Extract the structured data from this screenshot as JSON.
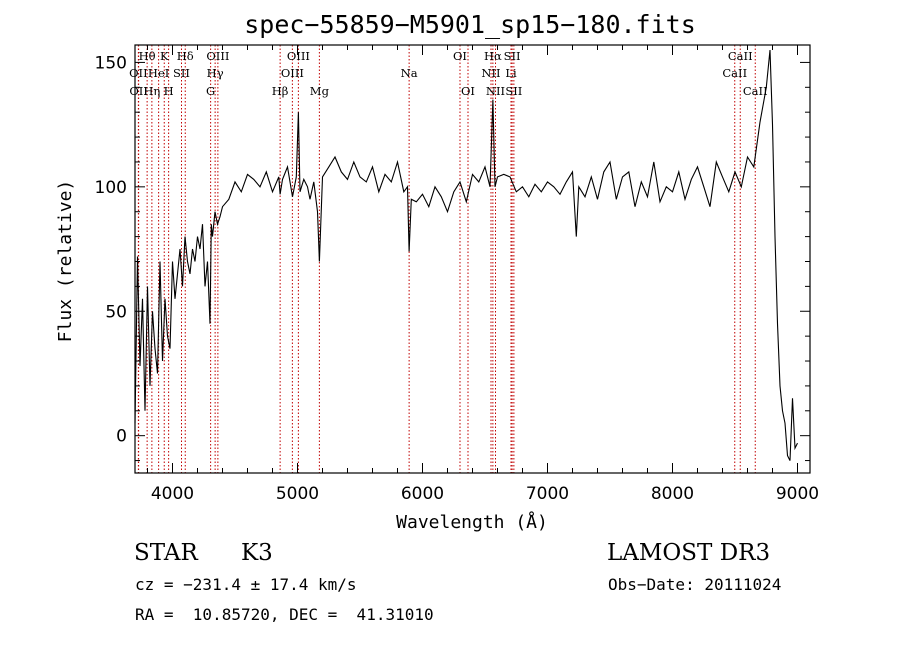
{
  "chart_data": {
    "type": "line",
    "title": "spec−55859−M5901_sp15−180.fits",
    "xlabel": "Wavelength (Å)",
    "ylabel": "Flux (relative)",
    "xlim": [
      3700,
      9100
    ],
    "ylim": [
      -15,
      157
    ],
    "xticks": [
      4000,
      5000,
      6000,
      7000,
      8000,
      9000
    ],
    "yticks": [
      0,
      50,
      100,
      150
    ],
    "grid": false,
    "series": [
      {
        "color": "#000000",
        "x": [
          3700,
          3720,
          3740,
          3760,
          3780,
          3800,
          3820,
          3840,
          3860,
          3880,
          3900,
          3920,
          3940,
          3960,
          3980,
          4000,
          4020,
          4040,
          4060,
          4080,
          4100,
          4120,
          4140,
          4160,
          4180,
          4200,
          4220,
          4240,
          4260,
          4280,
          4300,
          4310,
          4320,
          4340,
          4360,
          4380,
          4400,
          4450,
          4500,
          4550,
          4600,
          4650,
          4700,
          4750,
          4800,
          4850,
          4861,
          4880,
          4920,
          4960,
          4990,
          5007,
          5020,
          5050,
          5080,
          5100,
          5130,
          5160,
          5175,
          5200,
          5250,
          5300,
          5350,
          5400,
          5450,
          5500,
          5550,
          5600,
          5650,
          5700,
          5750,
          5800,
          5850,
          5880,
          5893,
          5910,
          5950,
          6000,
          6050,
          6100,
          6150,
          6200,
          6250,
          6300,
          6350,
          6400,
          6450,
          6500,
          6540,
          6563,
          6580,
          6600,
          6650,
          6700,
          6750,
          6800,
          6850,
          6900,
          6950,
          7000,
          7050,
          7100,
          7150,
          7200,
          7230,
          7250,
          7300,
          7350,
          7400,
          7450,
          7500,
          7550,
          7600,
          7650,
          7700,
          7750,
          7800,
          7850,
          7900,
          7950,
          8000,
          8050,
          8100,
          8150,
          8200,
          8250,
          8300,
          8350,
          8400,
          8450,
          8500,
          8550,
          8600,
          8650,
          8700,
          8750,
          8780,
          8800,
          8820,
          8840,
          8860,
          8880,
          8900,
          8920,
          8940,
          8960,
          8980,
          9000
        ],
        "y": [
          5,
          72,
          28,
          55,
          10,
          60,
          20,
          50,
          35,
          25,
          70,
          30,
          55,
          40,
          35,
          70,
          55,
          65,
          75,
          60,
          80,
          70,
          65,
          75,
          70,
          80,
          75,
          85,
          60,
          70,
          45,
          85,
          80,
          90,
          85,
          88,
          92,
          95,
          102,
          98,
          105,
          103,
          100,
          106,
          98,
          104,
          97,
          103,
          108,
          96,
          104,
          130,
          98,
          103,
          100,
          95,
          102,
          90,
          70,
          104,
          108,
          112,
          106,
          103,
          110,
          104,
          102,
          108,
          98,
          105,
          102,
          110,
          98,
          100,
          74,
          95,
          94,
          97,
          92,
          100,
          96,
          90,
          98,
          102,
          94,
          105,
          102,
          108,
          100,
          135,
          100,
          104,
          105,
          104,
          98,
          100,
          96,
          101,
          98,
          102,
          100,
          97,
          102,
          106,
          80,
          100,
          96,
          104,
          95,
          106,
          110,
          95,
          104,
          106,
          92,
          102,
          96,
          110,
          94,
          100,
          98,
          106,
          95,
          103,
          108,
          100,
          92,
          110,
          104,
          98,
          106,
          100,
          112,
          108,
          126,
          140,
          155,
          125,
          80,
          45,
          20,
          10,
          5,
          -8,
          -10,
          15,
          -5,
          -3
        ]
      }
    ],
    "spectral_lines": [
      {
        "name": "Hθ",
        "wave": 3797,
        "row": 0
      },
      {
        "name": "OII",
        "wave": 3727,
        "row": 1
      },
      {
        "name": "OII",
        "wave": 3729,
        "row": 2
      },
      {
        "name": "K",
        "wave": 3934,
        "row": 0
      },
      {
        "name": "Hη",
        "wave": 3835,
        "row": 2
      },
      {
        "name": "HeI",
        "wave": 3889,
        "row": 1
      },
      {
        "name": "H",
        "wave": 3969,
        "row": 2
      },
      {
        "name": "Hδ",
        "wave": 4102,
        "row": 0
      },
      {
        "name": "SII",
        "wave": 4072,
        "row": 1
      },
      {
        "name": "OIII",
        "wave": 4363,
        "row": 0
      },
      {
        "name": "Hγ",
        "wave": 4341,
        "row": 1
      },
      {
        "name": "G",
        "wave": 4305,
        "row": 2
      },
      {
        "name": "Hβ",
        "wave": 4861,
        "row": 2
      },
      {
        "name": "OIII",
        "wave": 5007,
        "row": 0
      },
      {
        "name": "OIII",
        "wave": 4959,
        "row": 1
      },
      {
        "name": "Mg",
        "wave": 5175,
        "row": 2
      },
      {
        "name": "Na",
        "wave": 5893,
        "row": 1
      },
      {
        "name": "OI",
        "wave": 6300,
        "row": 0
      },
      {
        "name": "OI",
        "wave": 6364,
        "row": 2
      },
      {
        "name": "Hα",
        "wave": 6563,
        "row": 0
      },
      {
        "name": "NII",
        "wave": 6548,
        "row": 1
      },
      {
        "name": "NII",
        "wave": 6584,
        "row": 2
      },
      {
        "name": "SII",
        "wave": 6717,
        "row": 0
      },
      {
        "name": "Li",
        "wave": 6708,
        "row": 1
      },
      {
        "name": "SII",
        "wave": 6731,
        "row": 2
      },
      {
        "name": "CaII",
        "wave": 8542,
        "row": 0
      },
      {
        "name": "CaII",
        "wave": 8498,
        "row": 1
      },
      {
        "name": "CaII",
        "wave": 8662,
        "row": 2
      }
    ],
    "line_color": "#c00000"
  },
  "info": {
    "class": "STAR",
    "subclass": "K3",
    "survey": "LAMOST DR3",
    "cz": "cz = −231.4 ± 17.4 km/s",
    "obs_date": "Obs−Date: 20111024",
    "radec": "RA =  10.85720, DEC =  41.31010"
  }
}
